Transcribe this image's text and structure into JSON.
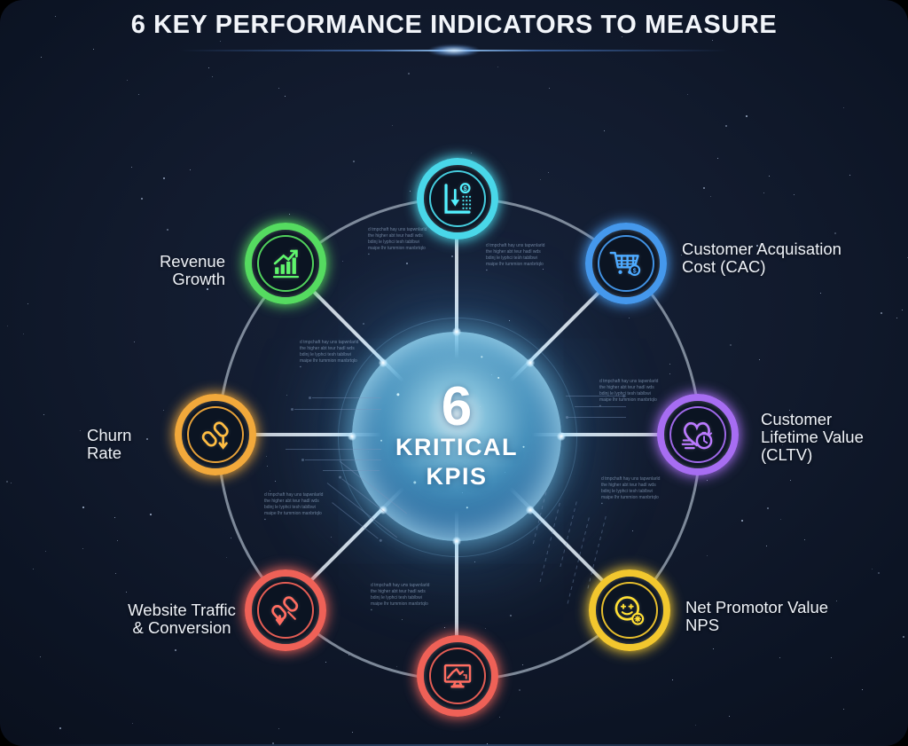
{
  "title": "6 KEY PERFORMANCE INDICATORS TO MEASURE",
  "center": {
    "number": "6",
    "line1": "KRITICAL",
    "line2": "KPIS"
  },
  "nodes": [
    {
      "name": "price-drop",
      "color": "#49D7E9",
      "label_lines": []
    },
    {
      "name": "revenue-growth",
      "color": "#55DB60",
      "label_lines": [
        "Revenue Growth"
      ]
    },
    {
      "name": "customer-acquisition-cost",
      "color": "#4598EC",
      "label_lines": [
        "Customer Acquisation",
        "Cost (CAC)"
      ]
    },
    {
      "name": "churn-rate",
      "color": "#F2A93B",
      "label_lines": [
        "Churn Rate"
      ]
    },
    {
      "name": "customer-lifetime-value",
      "color": "#A76DF2",
      "label_lines": [
        "Customer",
        "Lifetime Value",
        "(CLTV)"
      ]
    },
    {
      "name": "website-traffic-conversion",
      "color": "#EF6157",
      "label_lines": [
        "Website Traffic",
        "& Conversion"
      ]
    },
    {
      "name": "net-promoter-score",
      "color": "#F2C72E",
      "label_lines": [
        "Net Promotor Value",
        "NPS"
      ]
    },
    {
      "name": "analytics-monitor",
      "color": "#EF6157",
      "label_lines": []
    }
  ],
  "decor": {
    "illegible_text": "d tmpchaft hay uns tapwnlarld\nthe higher abt teur hadl wds\nbdinj le lyphci tesh tablbwi\nmaipe lhr tummion manbrtqlo\n▪"
  }
}
